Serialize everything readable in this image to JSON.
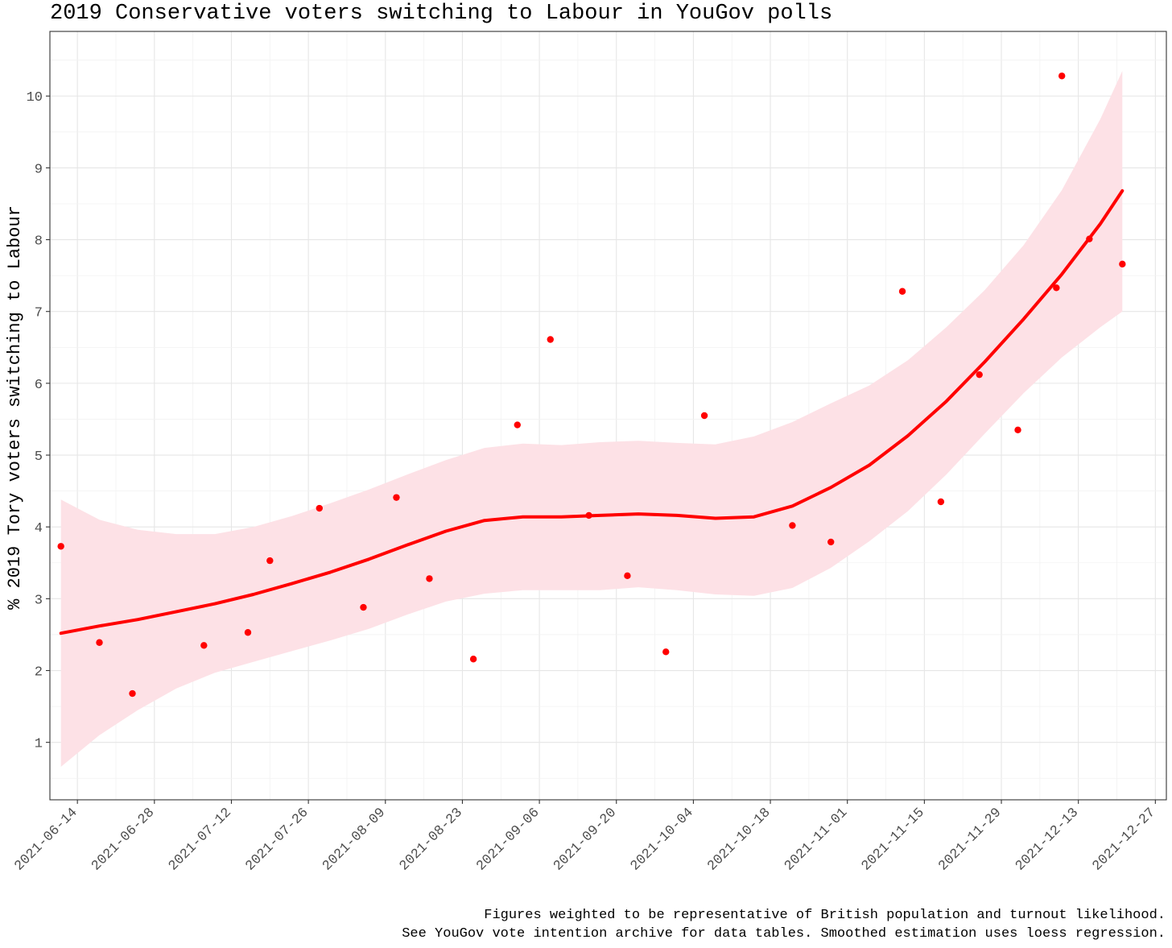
{
  "chart_data": {
    "type": "scatter",
    "title": "2019 Conservative voters switching to Labour in YouGov polls",
    "xlabel": "",
    "ylabel": "% 2019 Tory voters switching to Labour",
    "x_type": "date",
    "xlim": [
      "2021-06-09",
      "2021-12-29"
    ],
    "ylim": [
      0.2,
      10.9
    ],
    "x_ticks": [
      "2021-06-14",
      "2021-06-28",
      "2021-07-12",
      "2021-07-26",
      "2021-08-09",
      "2021-08-23",
      "2021-09-06",
      "2021-09-20",
      "2021-10-04",
      "2021-10-18",
      "2021-11-01",
      "2021-11-15",
      "2021-11-29",
      "2021-12-13",
      "2021-12-27"
    ],
    "y_ticks": [
      1,
      2,
      3,
      4,
      5,
      6,
      7,
      8,
      9,
      10
    ],
    "grid": true,
    "series": [
      {
        "kind": "points",
        "color": "#ff0000",
        "points": [
          {
            "x": "2021-06-11",
            "y": 3.73
          },
          {
            "x": "2021-06-18",
            "y": 2.39
          },
          {
            "x": "2021-06-24",
            "y": 1.68
          },
          {
            "x": "2021-07-07",
            "y": 2.35
          },
          {
            "x": "2021-07-15",
            "y": 2.53
          },
          {
            "x": "2021-07-19",
            "y": 3.53
          },
          {
            "x": "2021-07-28",
            "y": 4.26
          },
          {
            "x": "2021-08-05",
            "y": 2.88
          },
          {
            "x": "2021-08-11",
            "y": 4.41
          },
          {
            "x": "2021-08-17",
            "y": 3.28
          },
          {
            "x": "2021-08-25",
            "y": 2.16
          },
          {
            "x": "2021-09-02",
            "y": 5.42
          },
          {
            "x": "2021-09-08",
            "y": 6.61
          },
          {
            "x": "2021-09-15",
            "y": 4.16
          },
          {
            "x": "2021-09-22",
            "y": 3.32
          },
          {
            "x": "2021-09-29",
            "y": 2.26
          },
          {
            "x": "2021-10-06",
            "y": 5.55
          },
          {
            "x": "2021-10-22",
            "y": 4.02
          },
          {
            "x": "2021-10-29",
            "y": 3.79
          },
          {
            "x": "2021-11-11",
            "y": 7.28
          },
          {
            "x": "2021-11-18",
            "y": 4.35
          },
          {
            "x": "2021-11-25",
            "y": 6.12
          },
          {
            "x": "2021-12-02",
            "y": 5.35
          },
          {
            "x": "2021-12-09",
            "y": 7.33
          },
          {
            "x": "2021-12-10",
            "y": 10.28
          },
          {
            "x": "2021-12-15",
            "y": 8.01
          },
          {
            "x": "2021-12-21",
            "y": 7.66
          }
        ]
      },
      {
        "kind": "loess",
        "color": "#ff0000",
        "band_color": "#fde1e6",
        "points": [
          {
            "x": "2021-06-11",
            "y": 2.52,
            "lo": 0.66,
            "hi": 4.38
          },
          {
            "x": "2021-06-18",
            "y": 2.62,
            "lo": 1.1,
            "hi": 4.1
          },
          {
            "x": "2021-06-25",
            "y": 2.71,
            "lo": 1.45,
            "hi": 3.96
          },
          {
            "x": "2021-07-02",
            "y": 2.82,
            "lo": 1.75,
            "hi": 3.9
          },
          {
            "x": "2021-07-09",
            "y": 2.93,
            "lo": 1.97,
            "hi": 3.9
          },
          {
            "x": "2021-07-16",
            "y": 3.06,
            "lo": 2.12,
            "hi": 4.0
          },
          {
            "x": "2021-07-23",
            "y": 3.21,
            "lo": 2.27,
            "hi": 4.15
          },
          {
            "x": "2021-07-30",
            "y": 3.37,
            "lo": 2.42,
            "hi": 4.33
          },
          {
            "x": "2021-08-06",
            "y": 3.55,
            "lo": 2.58,
            "hi": 4.52
          },
          {
            "x": "2021-08-13",
            "y": 3.75,
            "lo": 2.78,
            "hi": 4.73
          },
          {
            "x": "2021-08-20",
            "y": 3.94,
            "lo": 2.96,
            "hi": 4.93
          },
          {
            "x": "2021-08-27",
            "y": 4.09,
            "lo": 3.07,
            "hi": 5.1
          },
          {
            "x": "2021-09-03",
            "y": 4.14,
            "lo": 3.12,
            "hi": 5.16
          },
          {
            "x": "2021-09-10",
            "y": 4.14,
            "lo": 3.12,
            "hi": 5.14
          },
          {
            "x": "2021-09-17",
            "y": 4.16,
            "lo": 3.12,
            "hi": 5.18
          },
          {
            "x": "2021-09-24",
            "y": 4.18,
            "lo": 3.16,
            "hi": 5.2
          },
          {
            "x": "2021-10-01",
            "y": 4.16,
            "lo": 3.12,
            "hi": 5.17
          },
          {
            "x": "2021-10-08",
            "y": 4.12,
            "lo": 3.06,
            "hi": 5.15
          },
          {
            "x": "2021-10-15",
            "y": 4.14,
            "lo": 3.04,
            "hi": 5.26
          },
          {
            "x": "2021-10-22",
            "y": 4.29,
            "lo": 3.15,
            "hi": 5.46
          },
          {
            "x": "2021-10-29",
            "y": 4.55,
            "lo": 3.43,
            "hi": 5.72
          },
          {
            "x": "2021-11-05",
            "y": 4.86,
            "lo": 3.8,
            "hi": 5.97
          },
          {
            "x": "2021-11-12",
            "y": 5.27,
            "lo": 4.22,
            "hi": 6.32
          },
          {
            "x": "2021-11-19",
            "y": 5.75,
            "lo": 4.73,
            "hi": 6.78
          },
          {
            "x": "2021-11-26",
            "y": 6.3,
            "lo": 5.3,
            "hi": 7.3
          },
          {
            "x": "2021-12-03",
            "y": 6.89,
            "lo": 5.86,
            "hi": 7.92
          },
          {
            "x": "2021-12-10",
            "y": 7.52,
            "lo": 6.36,
            "hi": 8.69
          },
          {
            "x": "2021-12-17",
            "y": 8.22,
            "lo": 6.78,
            "hi": 9.68
          },
          {
            "x": "2021-12-21",
            "y": 8.68,
            "lo": 7.0,
            "hi": 10.35
          }
        ]
      }
    ],
    "caption": [
      "Figures weighted to be representative of British population and turnout likelihood.",
      "See YouGov vote intention archive for data tables. Smoothed estimation uses loess regression."
    ]
  }
}
